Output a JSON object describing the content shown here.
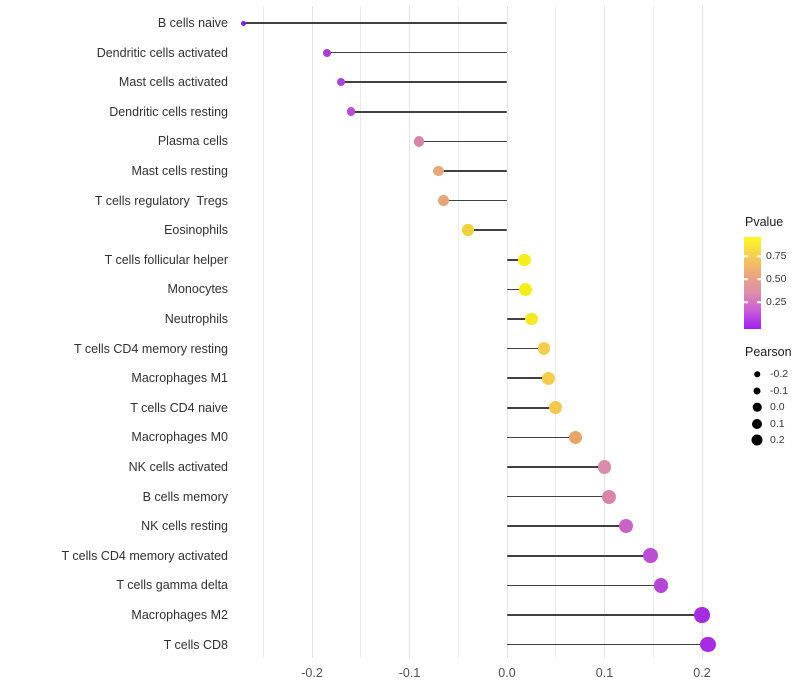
{
  "chart_data": {
    "type": "scatter",
    "style": "lollipop",
    "title": "",
    "xlabel": "",
    "ylabel": "",
    "xlim": [
      -0.28,
      0.225
    ],
    "x_ticks": [
      -0.2,
      -0.1,
      0.0,
      0.1,
      0.2
    ],
    "x_tick_labels": [
      "-0.2",
      "-0.1",
      "0.0",
      "0.1",
      "0.2"
    ],
    "grid": {
      "vertical": true,
      "horizontal": false,
      "minor_step": 0.05,
      "major_step": 0.1,
      "range": [
        -0.25,
        0.2
      ]
    },
    "points": [
      {
        "label": "B cells naive",
        "pearson": -0.27,
        "pvalue_approx": 0.03,
        "color": "#8a1bdb"
      },
      {
        "label": "Dendritic cells activated",
        "pearson": -0.185,
        "pvalue_approx": 0.1,
        "color": "#a93fd9"
      },
      {
        "label": "Mast cells activated",
        "pearson": -0.17,
        "pvalue_approx": 0.12,
        "color": "#ad45d6"
      },
      {
        "label": "Dendritic cells resting",
        "pearson": -0.16,
        "pvalue_approx": 0.15,
        "color": "#b44ed2"
      },
      {
        "label": "Plasma cells",
        "pearson": -0.09,
        "pvalue_approx": 0.4,
        "color": "#d687a8"
      },
      {
        "label": "Mast cells resting",
        "pearson": -0.07,
        "pvalue_approx": 0.55,
        "color": "#e6a87e"
      },
      {
        "label": "T cells regulatory  Tregs",
        "pearson": -0.065,
        "pvalue_approx": 0.55,
        "color": "#e5a57c"
      },
      {
        "label": "Eosinophils",
        "pearson": -0.04,
        "pvalue_approx": 0.72,
        "color": "#f0d042"
      },
      {
        "label": "T cells follicular helper",
        "pearson": 0.018,
        "pvalue_approx": 0.92,
        "color": "#f5ee1e"
      },
      {
        "label": "Monocytes",
        "pearson": 0.019,
        "pvalue_approx": 0.92,
        "color": "#f5ee1e"
      },
      {
        "label": "Neutrophils",
        "pearson": 0.025,
        "pvalue_approx": 0.88,
        "color": "#f5e926"
      },
      {
        "label": "T cells CD4 memory resting",
        "pearson": 0.038,
        "pvalue_approx": 0.78,
        "color": "#f3cf4e"
      },
      {
        "label": "Macrophages M1",
        "pearson": 0.043,
        "pvalue_approx": 0.78,
        "color": "#f3cd4f"
      },
      {
        "label": "T cells CD4 naive",
        "pearson": 0.05,
        "pvalue_approx": 0.75,
        "color": "#f2c84e"
      },
      {
        "label": "Macrophages M0",
        "pearson": 0.07,
        "pvalue_approx": 0.58,
        "color": "#e9a468"
      },
      {
        "label": "NK cells activated",
        "pearson": 0.1,
        "pvalue_approx": 0.42,
        "color": "#db8cab"
      },
      {
        "label": "B cells memory",
        "pearson": 0.105,
        "pvalue_approx": 0.4,
        "color": "#d985ab"
      },
      {
        "label": "NK cells resting",
        "pearson": 0.122,
        "pvalue_approx": 0.28,
        "color": "#c863c4"
      },
      {
        "label": "T cells CD4 memory activated",
        "pearson": 0.147,
        "pvalue_approx": 0.18,
        "color": "#bb4fd2"
      },
      {
        "label": "T cells gamma delta",
        "pearson": 0.158,
        "pvalue_approx": 0.15,
        "color": "#b447d6"
      },
      {
        "label": "Macrophages M2",
        "pearson": 0.2,
        "pvalue_approx": 0.06,
        "color": "#a62ce0"
      },
      {
        "label": "T cells CD8",
        "pearson": 0.206,
        "pvalue_approx": 0.05,
        "color": "#a82ae2"
      }
    ],
    "legend_pvalue": {
      "title": "Pvalue",
      "tick_labels": [
        "0.75",
        "0.50",
        "0.25"
      ],
      "tick_positions_pct": [
        21,
        46,
        71
      ],
      "gradient_top_to_bottom": [
        "#fcf921",
        "#f6cf54",
        "#eba87b",
        "#de8fa8",
        "#c95fd6",
        "#a21df2"
      ]
    },
    "legend_pearson": {
      "title": "Pearson",
      "items": [
        {
          "label": "-0.2",
          "diameter": 5.5
        },
        {
          "label": "-0.1",
          "diameter": 7
        },
        {
          "label": "0.0",
          "diameter": 8.5
        },
        {
          "label": "0.1",
          "diameter": 10
        },
        {
          "label": "0.2",
          "diameter": 11
        }
      ]
    },
    "colors": {
      "stem": "#404040",
      "gridline": "#ebebeb",
      "background": "#ffffff"
    }
  }
}
